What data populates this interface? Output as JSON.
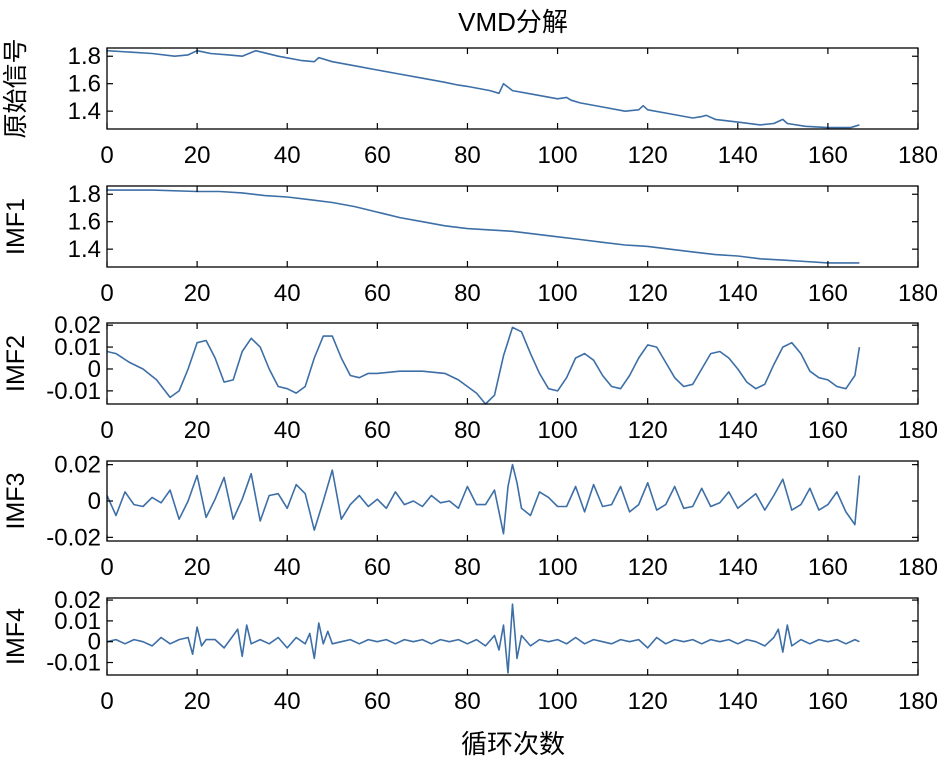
{
  "title": "VMD分解",
  "xlabel": "循环次数",
  "colors": {
    "line": "#3d6fa6",
    "axis": "#000000",
    "background": "#ffffff"
  },
  "chart_data": [
    {
      "type": "line",
      "name": "original",
      "ylabel": "原始信号",
      "xlim": [
        0,
        180
      ],
      "ylim": [
        1.27,
        1.86
      ],
      "xticks": [
        "0",
        "20",
        "40",
        "60",
        "80",
        "100",
        "120",
        "140",
        "160",
        "180"
      ],
      "yticks": [
        {
          "v": 1.8,
          "label": "1.8"
        },
        {
          "v": 1.6,
          "label": "1.6"
        },
        {
          "v": 1.4,
          "label": "1.4"
        }
      ],
      "x": [
        0,
        5,
        10,
        15,
        18,
        20,
        23,
        27,
        30,
        33,
        38,
        43,
        46,
        47,
        50,
        55,
        60,
        65,
        70,
        75,
        78,
        80,
        85,
        87,
        88,
        90,
        95,
        100,
        102,
        103,
        105,
        110,
        115,
        118,
        119,
        120,
        125,
        130,
        132,
        133,
        135,
        140,
        145,
        148,
        150,
        151,
        155,
        160,
        165,
        166,
        167
      ],
      "y": [
        1.84,
        1.83,
        1.82,
        1.8,
        1.81,
        1.84,
        1.82,
        1.81,
        1.8,
        1.84,
        1.8,
        1.77,
        1.76,
        1.79,
        1.76,
        1.73,
        1.7,
        1.67,
        1.64,
        1.61,
        1.59,
        1.58,
        1.55,
        1.53,
        1.6,
        1.55,
        1.52,
        1.49,
        1.5,
        1.48,
        1.46,
        1.43,
        1.4,
        1.41,
        1.44,
        1.41,
        1.38,
        1.35,
        1.36,
        1.37,
        1.34,
        1.32,
        1.3,
        1.31,
        1.34,
        1.31,
        1.29,
        1.28,
        1.28,
        1.29,
        1.3
      ]
    },
    {
      "type": "line",
      "name": "IMF1",
      "ylabel": "IMF1",
      "xlim": [
        0,
        180
      ],
      "ylim": [
        1.27,
        1.86
      ],
      "xticks": [
        "0",
        "20",
        "40",
        "60",
        "80",
        "100",
        "120",
        "140",
        "160",
        "180"
      ],
      "yticks": [
        {
          "v": 1.8,
          "label": "1.8"
        },
        {
          "v": 1.6,
          "label": "1.6"
        },
        {
          "v": 1.4,
          "label": "1.4"
        }
      ],
      "x": [
        0,
        10,
        20,
        25,
        30,
        35,
        40,
        45,
        50,
        55,
        60,
        65,
        70,
        75,
        80,
        85,
        90,
        95,
        100,
        105,
        110,
        115,
        120,
        125,
        130,
        135,
        140,
        145,
        150,
        155,
        160,
        165,
        167
      ],
      "y": [
        1.83,
        1.83,
        1.82,
        1.82,
        1.81,
        1.79,
        1.78,
        1.76,
        1.74,
        1.71,
        1.67,
        1.63,
        1.6,
        1.57,
        1.55,
        1.54,
        1.53,
        1.51,
        1.49,
        1.47,
        1.45,
        1.43,
        1.42,
        1.4,
        1.38,
        1.36,
        1.35,
        1.33,
        1.32,
        1.31,
        1.3,
        1.3,
        1.3
      ]
    },
    {
      "type": "line",
      "name": "IMF2",
      "ylabel": "IMF2",
      "xlim": [
        0,
        180
      ],
      "ylim": [
        -0.016,
        0.021
      ],
      "xticks": [
        "0",
        "20",
        "40",
        "60",
        "80",
        "100",
        "120",
        "140",
        "160",
        "180"
      ],
      "yticks": [
        {
          "v": 0.02,
          "label": "0.02"
        },
        {
          "v": 0.01,
          "label": "0.01"
        },
        {
          "v": 0,
          "label": "0"
        },
        {
          "v": -0.01,
          "label": "-0.01"
        }
      ],
      "x": [
        0,
        2,
        5,
        8,
        11,
        14,
        16,
        18,
        20,
        22,
        24,
        26,
        28,
        30,
        32,
        34,
        36,
        38,
        40,
        42,
        44,
        46,
        48,
        50,
        52,
        54,
        56,
        58,
        60,
        65,
        70,
        75,
        78,
        80,
        82,
        84,
        86,
        88,
        90,
        92,
        94,
        96,
        98,
        100,
        102,
        104,
        106,
        108,
        110,
        112,
        114,
        116,
        118,
        120,
        122,
        124,
        126,
        128,
        130,
        132,
        134,
        136,
        138,
        140,
        142,
        144,
        146,
        148,
        150,
        152,
        154,
        156,
        158,
        160,
        162,
        164,
        166,
        167
      ],
      "y": [
        0.008,
        0.007,
        0.003,
        0.0,
        -0.005,
        -0.013,
        -0.01,
        0.0,
        0.012,
        0.013,
        0.005,
        -0.006,
        -0.005,
        0.008,
        0.014,
        0.01,
        0.0,
        -0.008,
        -0.009,
        -0.011,
        -0.008,
        0.005,
        0.015,
        0.015,
        0.005,
        -0.003,
        -0.004,
        -0.002,
        -0.002,
        -0.001,
        -0.001,
        -0.002,
        -0.005,
        -0.008,
        -0.011,
        -0.016,
        -0.012,
        0.006,
        0.019,
        0.017,
        0.007,
        -0.002,
        -0.009,
        -0.01,
        -0.004,
        0.005,
        0.007,
        0.004,
        -0.003,
        -0.008,
        -0.009,
        -0.003,
        0.005,
        0.011,
        0.01,
        0.003,
        -0.004,
        -0.008,
        -0.007,
        0.0,
        0.007,
        0.008,
        0.005,
        0.0,
        -0.006,
        -0.009,
        -0.007,
        0.002,
        0.01,
        0.012,
        0.007,
        -0.001,
        -0.004,
        -0.005,
        -0.008,
        -0.009,
        -0.003,
        0.01
      ]
    },
    {
      "type": "line",
      "name": "IMF3",
      "ylabel": "IMF3",
      "xlim": [
        0,
        180
      ],
      "ylim": [
        -0.022,
        0.022
      ],
      "xticks": [
        "0",
        "20",
        "40",
        "60",
        "80",
        "100",
        "120",
        "140",
        "160",
        "180"
      ],
      "yticks": [
        {
          "v": 0.02,
          "label": "0.02"
        },
        {
          "v": 0,
          "label": "0"
        },
        {
          "v": -0.02,
          "label": "-0.02"
        }
      ],
      "x": [
        0,
        2,
        4,
        6,
        8,
        10,
        12,
        14,
        16,
        18,
        20,
        22,
        24,
        26,
        28,
        30,
        32,
        34,
        36,
        38,
        40,
        42,
        44,
        46,
        48,
        50,
        52,
        54,
        56,
        58,
        60,
        62,
        64,
        66,
        68,
        70,
        72,
        74,
        76,
        78,
        80,
        82,
        84,
        86,
        88,
        89,
        90,
        91,
        92,
        94,
        96,
        98,
        100,
        102,
        104,
        106,
        108,
        110,
        112,
        114,
        116,
        118,
        120,
        122,
        124,
        126,
        128,
        130,
        132,
        134,
        136,
        138,
        140,
        142,
        144,
        146,
        148,
        150,
        152,
        154,
        156,
        158,
        160,
        162,
        164,
        166,
        167
      ],
      "y": [
        0.003,
        -0.008,
        0.005,
        -0.002,
        -0.003,
        0.002,
        -0.001,
        0.006,
        -0.01,
        0.0,
        0.014,
        -0.009,
        0.001,
        0.013,
        -0.01,
        0.001,
        0.015,
        -0.011,
        0.003,
        0.004,
        -0.004,
        0.009,
        0.004,
        -0.016,
        0.0,
        0.017,
        -0.01,
        -0.002,
        0.003,
        -0.003,
        0.001,
        -0.004,
        0.005,
        -0.002,
        0.0,
        -0.003,
        0.003,
        -0.001,
        0.0,
        -0.004,
        0.008,
        -0.002,
        -0.002,
        0.006,
        -0.018,
        0.008,
        0.02,
        0.01,
        -0.004,
        -0.008,
        0.005,
        0.002,
        -0.003,
        -0.003,
        0.008,
        -0.006,
        0.009,
        -0.003,
        -0.002,
        0.008,
        -0.006,
        -0.002,
        0.01,
        -0.005,
        -0.002,
        0.008,
        -0.004,
        -0.003,
        0.007,
        -0.003,
        -0.001,
        0.005,
        -0.004,
        0.0,
        0.004,
        -0.005,
        0.003,
        0.012,
        -0.005,
        -0.002,
        0.007,
        -0.005,
        -0.002,
        0.005,
        -0.006,
        -0.013,
        0.014
      ]
    },
    {
      "type": "line",
      "name": "IMF4",
      "ylabel": "IMF4",
      "xlim": [
        0,
        180
      ],
      "ylim": [
        -0.016,
        0.021
      ],
      "xticks": [
        "0",
        "20",
        "40",
        "60",
        "80",
        "100",
        "120",
        "140",
        "160",
        "180"
      ],
      "yticks": [
        {
          "v": 0.02,
          "label": "0.02"
        },
        {
          "v": 0.01,
          "label": "0.01"
        },
        {
          "v": 0,
          "label": "0"
        },
        {
          "v": -0.01,
          "label": "-0.01"
        }
      ],
      "x": [
        0,
        2,
        4,
        6,
        8,
        10,
        12,
        14,
        16,
        18,
        19,
        20,
        21,
        22,
        24,
        26,
        28,
        29,
        30,
        31,
        32,
        34,
        36,
        38,
        40,
        42,
        44,
        45,
        46,
        47,
        48,
        49,
        50,
        52,
        54,
        56,
        58,
        60,
        62,
        64,
        66,
        68,
        70,
        72,
        74,
        76,
        78,
        80,
        82,
        84,
        86,
        87,
        88,
        89,
        90,
        91,
        92,
        94,
        96,
        98,
        100,
        102,
        104,
        106,
        108,
        110,
        112,
        114,
        116,
        118,
        120,
        122,
        124,
        126,
        128,
        130,
        132,
        134,
        136,
        138,
        140,
        142,
        144,
        146,
        148,
        149,
        150,
        151,
        152,
        154,
        156,
        158,
        160,
        162,
        164,
        166,
        167
      ],
      "y": [
        0.0,
        0.001,
        -0.001,
        0.001,
        0.0,
        -0.002,
        0.002,
        -0.001,
        0.001,
        0.002,
        -0.006,
        0.007,
        -0.002,
        0.001,
        0.001,
        -0.003,
        0.003,
        0.006,
        -0.007,
        0.008,
        -0.001,
        0.001,
        -0.001,
        0.002,
        -0.003,
        0.002,
        -0.001,
        0.004,
        -0.008,
        0.009,
        -0.001,
        0.005,
        -0.001,
        0.0,
        0.001,
        -0.001,
        0.001,
        0.0,
        0.001,
        -0.001,
        0.001,
        0.0,
        0.001,
        -0.001,
        0.001,
        0.0,
        0.001,
        -0.001,
        0.001,
        -0.002,
        0.003,
        -0.004,
        0.008,
        -0.015,
        0.018,
        -0.008,
        0.003,
        -0.002,
        0.001,
        0.0,
        0.001,
        -0.001,
        0.002,
        -0.001,
        0.001,
        0.0,
        -0.001,
        0.001,
        0.0,
        0.001,
        -0.003,
        0.002,
        -0.001,
        0.001,
        0.0,
        0.001,
        -0.001,
        0.001,
        0.0,
        0.001,
        -0.001,
        0.001,
        0.0,
        -0.002,
        0.002,
        0.006,
        -0.005,
        0.008,
        -0.002,
        0.001,
        -0.001,
        0.001,
        0.0,
        0.001,
        -0.001,
        0.001,
        0.0
      ]
    }
  ]
}
